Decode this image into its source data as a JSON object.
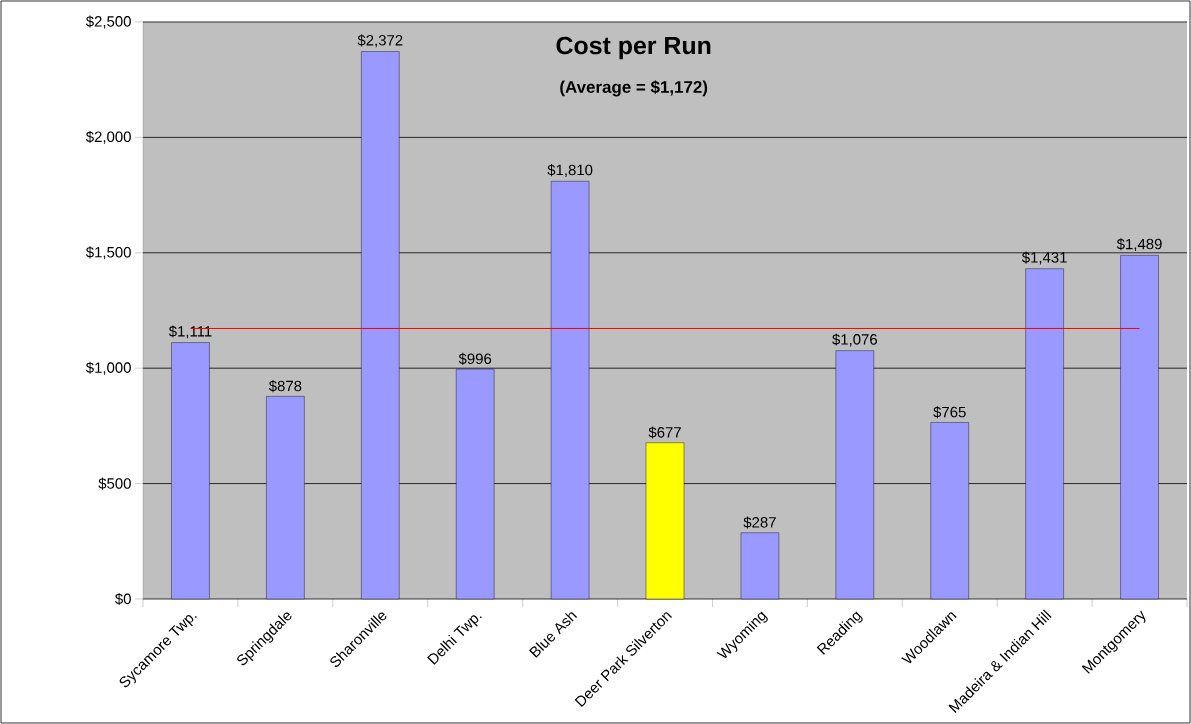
{
  "chart_data": {
    "type": "bar",
    "title": "Cost per Run",
    "subtitle": "(Average = $1,172)",
    "categories": [
      "Sycamore Twp.",
      "Springdale",
      "Sharonville",
      "Delhi Twp.",
      "Blue Ash",
      "Deer Park Silverton",
      "Wyoming",
      "Reading",
      "Woodlawn",
      "Madeira & Indian Hill",
      "Montgomery"
    ],
    "values": [
      1111,
      878,
      2372,
      996,
      1810,
      677,
      287,
      1076,
      765,
      1431,
      1489
    ],
    "colors": [
      "#9999ff",
      "#9999ff",
      "#9999ff",
      "#9999ff",
      "#9999ff",
      "#ffff00",
      "#9999ff",
      "#9999ff",
      "#9999ff",
      "#9999ff",
      "#9999ff"
    ],
    "value_labels": [
      "$1,111",
      "$878",
      "$2,372",
      "$996",
      "$1,810",
      "$677",
      "$287",
      "$1,076",
      "$765",
      "$1,431",
      "$1,489"
    ],
    "ylim": [
      0,
      2500
    ],
    "yticks": [
      {
        "value": 0,
        "label": "$0"
      },
      {
        "value": 500,
        "label": "$500"
      },
      {
        "value": 1000,
        "label": "$1,000"
      },
      {
        "value": 1500,
        "label": "$1,500"
      },
      {
        "value": 2000,
        "label": "$2,000"
      },
      {
        "value": 2500,
        "label": "$2,500"
      }
    ],
    "grid": "y",
    "ref_lines": [
      {
        "axis": "y",
        "value": 1172,
        "color": "#ff0000"
      }
    ]
  }
}
